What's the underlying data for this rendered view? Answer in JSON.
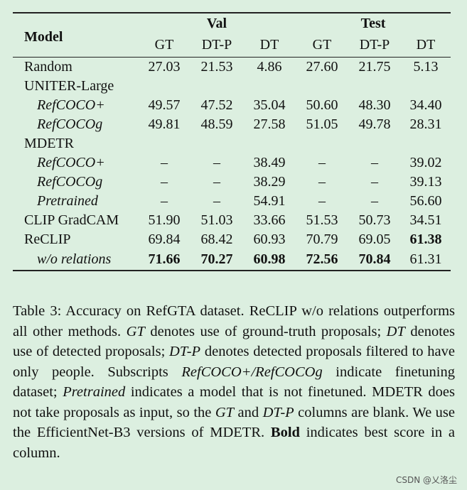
{
  "table": {
    "model_header": "Model",
    "groups": [
      "Val",
      "Test"
    ],
    "columns": [
      "GT",
      "DT-P",
      "DT",
      "GT",
      "DT-P",
      "DT"
    ],
    "rows": [
      {
        "label": "Random",
        "sub": false,
        "values": [
          "27.03",
          "21.53",
          "4.86",
          "27.60",
          "21.75",
          "5.13"
        ],
        "bold": []
      },
      {
        "label": "UNITER-Large",
        "sub": false,
        "values": [],
        "bold": []
      },
      {
        "label": "RefCOCO+",
        "sub": true,
        "values": [
          "49.57",
          "47.52",
          "35.04",
          "50.60",
          "48.30",
          "34.40"
        ],
        "bold": []
      },
      {
        "label": "RefCOCOg",
        "sub": true,
        "values": [
          "49.81",
          "48.59",
          "27.58",
          "51.05",
          "49.78",
          "28.31"
        ],
        "bold": []
      },
      {
        "label": "MDETR",
        "sub": false,
        "values": [],
        "bold": []
      },
      {
        "label": "RefCOCO+",
        "sub": true,
        "values": [
          "–",
          "–",
          "38.49",
          "–",
          "–",
          "39.02"
        ],
        "bold": []
      },
      {
        "label": "RefCOCOg",
        "sub": true,
        "values": [
          "–",
          "–",
          "38.29",
          "–",
          "–",
          "39.13"
        ],
        "bold": []
      },
      {
        "label": "Pretrained",
        "sub": true,
        "values": [
          "–",
          "–",
          "54.91",
          "–",
          "–",
          "56.60"
        ],
        "bold": []
      },
      {
        "label": "CLIP GradCAM",
        "sub": false,
        "values": [
          "51.90",
          "51.03",
          "33.66",
          "51.53",
          "50.73",
          "34.51"
        ],
        "bold": []
      },
      {
        "label": "ReCLIP",
        "sub": false,
        "values": [
          "69.84",
          "68.42",
          "60.93",
          "70.79",
          "69.05",
          "61.38"
        ],
        "bold": [
          5
        ]
      },
      {
        "label": "w/o relations",
        "sub": true,
        "values": [
          "71.66",
          "70.27",
          "60.98",
          "72.56",
          "70.84",
          "61.31"
        ],
        "bold": [
          0,
          1,
          2,
          3,
          4
        ]
      }
    ]
  },
  "caption": {
    "s1": "Table 3: Accuracy on RefGTA dataset. ReCLIP w/o relations outperforms all other methods. ",
    "gt": "GT",
    "s2": " denotes use of ground-truth proposals; ",
    "dt": "DT",
    "s3": " denotes use of detected proposals; ",
    "dtp": "DT-P",
    "s4": " denotes detected proposals filtered to have only people. Subscripts ",
    "refs": "RefCOCO+/RefCOCOg",
    "s5": " indicate finetuning dataset; ",
    "pre": "Pretrained",
    "s6": " indicates a model that is not finetuned. MDETR does not take proposals as input, so the ",
    "gt2": "GT",
    "s7": " and ",
    "dtp2": "DT-P",
    "s8": " columns are blank. We use the EfficientNet-B3 versions of MDETR. ",
    "boldword": "Bold",
    "s9": " indicates best score in a column."
  },
  "watermark": "CSDN @乂洛尘"
}
